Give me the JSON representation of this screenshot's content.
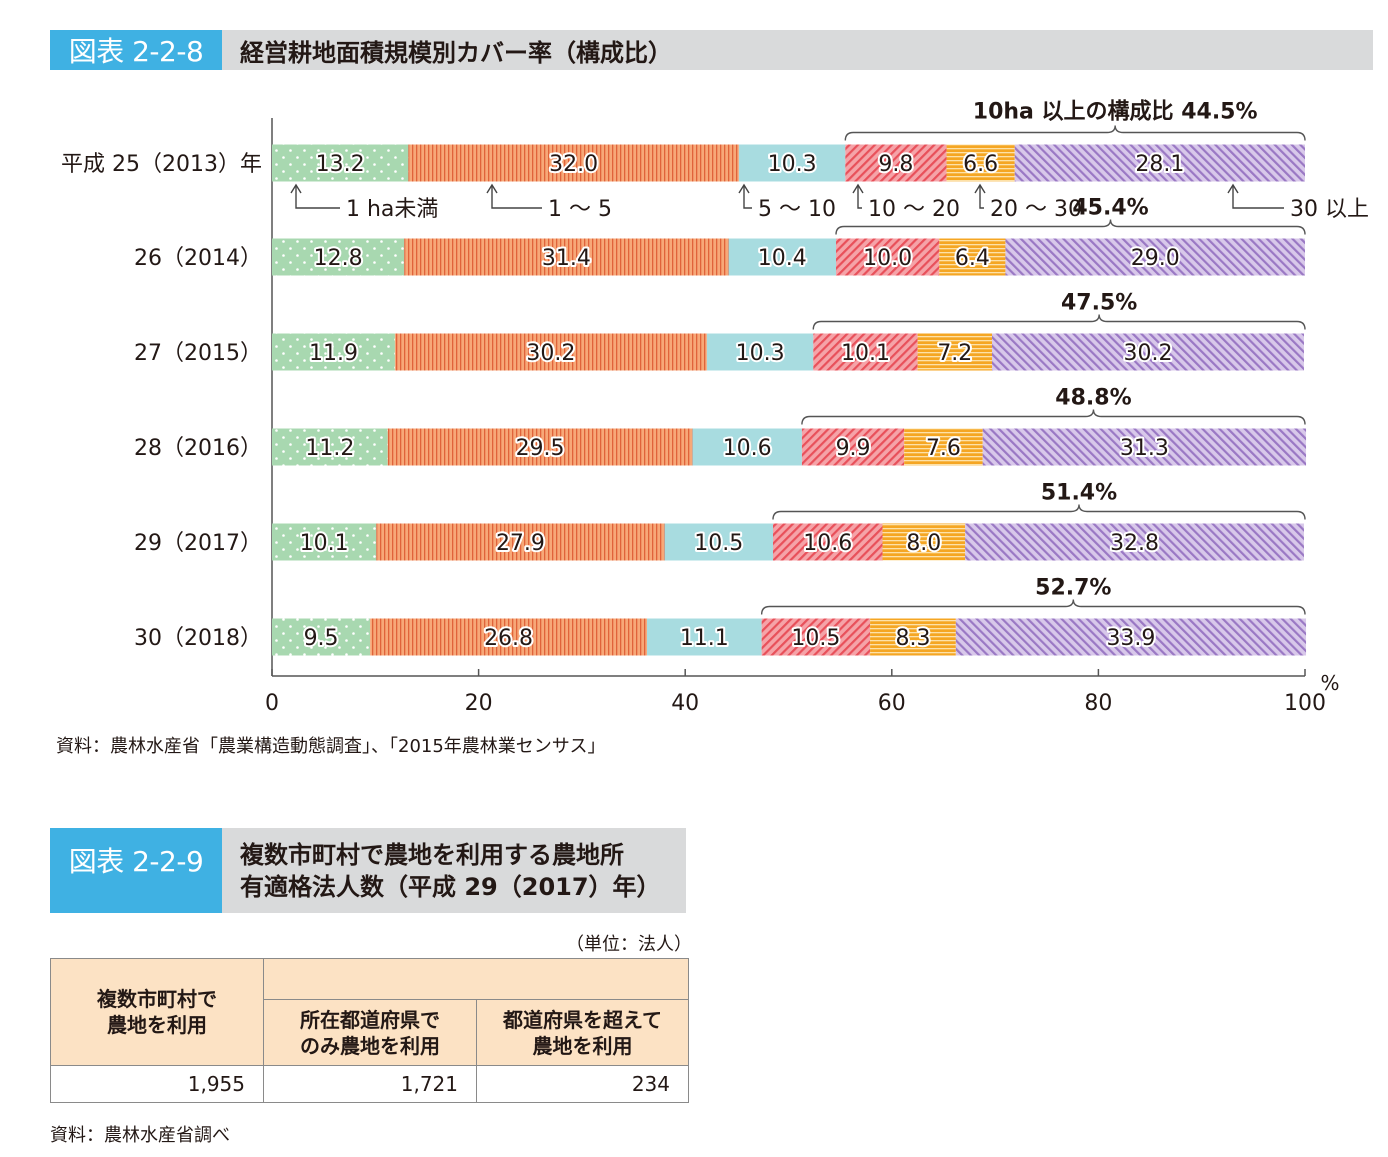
{
  "figure1": {
    "label": "図表 2-2-8",
    "title": "経営耕地面積規模別カバー率（構成比）",
    "source": "資料：農林水産省「農業構造動態調査」、「2015年農林業センサス」"
  },
  "figure2": {
    "label": "図表 2-2-9",
    "title_line1": "複数市町村で農地を利用する農地所",
    "title_line2": "有適格法人数（平成 29（2017）年）",
    "unit": "（単位：法人）",
    "header_total_line1": "複数市町村で",
    "header_total_line2": "農地を利用",
    "header_within_line1": "所在都道府県で",
    "header_within_line2": "のみ農地を利用",
    "header_cross_line1": "都道府県を超えて",
    "header_cross_line2": "農地を利用",
    "value_total": "1,955",
    "value_within": "1,721",
    "value_cross": "234",
    "source": "資料：農林水産省調べ"
  },
  "chart_data": {
    "type": "bar",
    "orientation": "horizontal",
    "stacked": true,
    "categories": [
      "平成 25（2013）年",
      "26（2014）",
      "27（2015）",
      "28（2016）",
      "29（2017）",
      "30（2018）"
    ],
    "series": [
      {
        "name": "1 ha未満",
        "values": [
          13.2,
          12.8,
          11.9,
          11.2,
          10.1,
          9.5
        ],
        "color": "#a8d8b0"
      },
      {
        "name": "1 〜 5",
        "values": [
          32.0,
          31.4,
          30.2,
          29.5,
          27.9,
          26.8
        ],
        "color": "#f7a878"
      },
      {
        "name": "5 〜 10",
        "values": [
          10.3,
          10.4,
          10.3,
          10.6,
          10.5,
          11.1
        ],
        "color": "#a8dce0"
      },
      {
        "name": "10 〜 20",
        "values": [
          9.8,
          10.0,
          10.1,
          9.9,
          10.6,
          10.5
        ],
        "color": "#f08a90"
      },
      {
        "name": "20 〜 30",
        "values": [
          6.6,
          6.4,
          7.2,
          7.6,
          8.0,
          8.3
        ],
        "color": "#f5a623"
      },
      {
        "name": "30 以上",
        "values": [
          28.1,
          29.0,
          30.2,
          31.3,
          32.8,
          33.9
        ],
        "color": "#b9a0d4"
      }
    ],
    "over10_first_label": "10ha 以上の構成比",
    "over10_share": [
      "44.5%",
      "45.4%",
      "47.5%",
      "48.8%",
      "51.4%",
      "52.7%"
    ],
    "xlim": [
      0,
      100
    ],
    "xticks": [
      "0",
      "20",
      "40",
      "60",
      "80",
      "100"
    ],
    "xunit": "%"
  }
}
